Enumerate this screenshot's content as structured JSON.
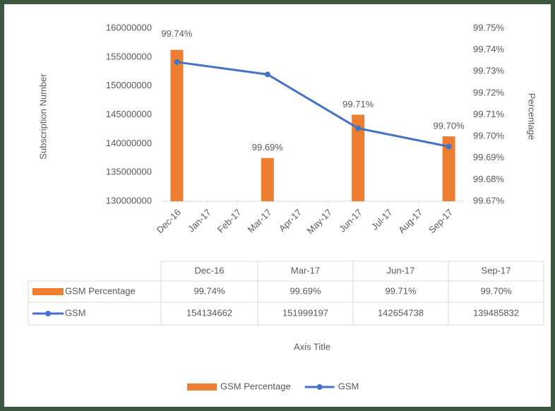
{
  "chart_data": {
    "type": "combo",
    "categories": [
      "Dec-16",
      "Jan-17",
      "Feb-17",
      "Mar-17",
      "Apr-17",
      "May-17",
      "Jun-17",
      "Jul-17",
      "Aug-17",
      "Sep-17"
    ],
    "series": [
      {
        "name": "GSM Percentage",
        "type": "bar",
        "axis": "y2",
        "color": "#ed7d31",
        "x": [
          "Dec-16",
          "Mar-17",
          "Jun-17",
          "Sep-17"
        ],
        "values": [
          99.74,
          99.69,
          99.71,
          99.7
        ],
        "value_labels": [
          "99.74%",
          "99.69%",
          "99.71%",
          "99.70%"
        ]
      },
      {
        "name": "GSM",
        "type": "line",
        "color": "#4472c4",
        "x": [
          "Dec-16",
          "Mar-17",
          "Jun-17",
          "Sep-17"
        ],
        "values": [
          154134662,
          151999197,
          142654738,
          139485832
        ]
      }
    ],
    "ylabel": "Subscription Number",
    "y2label": "Percentage",
    "xlabel": "Axis Title",
    "ylim": [
      130000000,
      160000000
    ],
    "yticks": [
      130000000,
      135000000,
      140000000,
      145000000,
      150000000,
      155000000,
      160000000
    ],
    "y2lim": [
      99.67,
      99.75
    ],
    "y2ticks": [
      {
        "value": 99.67,
        "label": "99.67%"
      },
      {
        "value": 99.68,
        "label": "99.68%"
      },
      {
        "value": 99.69,
        "label": "99.69%"
      },
      {
        "value": 99.7,
        "label": "99.70%"
      },
      {
        "value": 99.71,
        "label": "99.71%"
      },
      {
        "value": 99.72,
        "label": "99.72%"
      },
      {
        "value": 99.73,
        "label": "99.73%"
      },
      {
        "value": 99.74,
        "label": "99.74%"
      },
      {
        "value": 99.75,
        "label": "99.75%"
      }
    ],
    "legend": "bottom"
  }
}
